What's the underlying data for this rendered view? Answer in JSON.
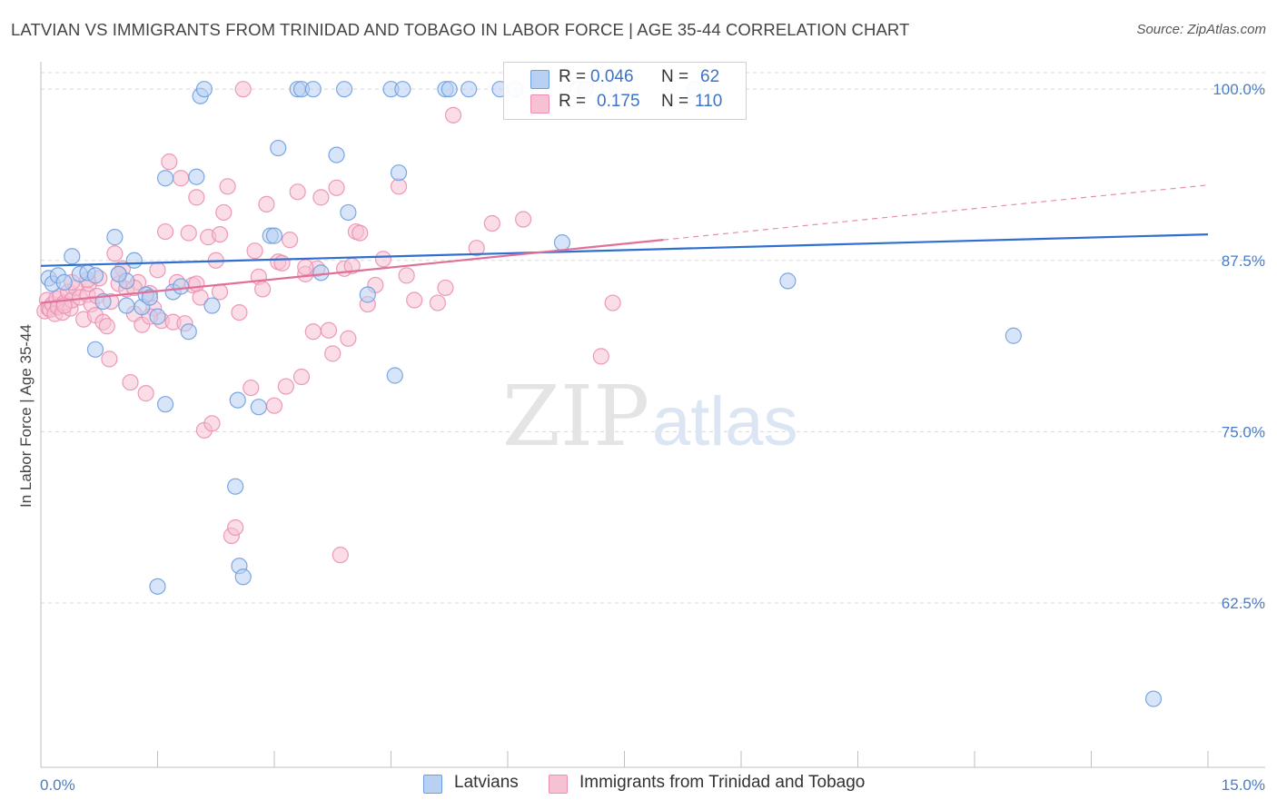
{
  "header": {
    "title": "LATVIAN VS IMMIGRANTS FROM TRINIDAD AND TOBAGO IN LABOR FORCE | AGE 35-44 CORRELATION CHART",
    "source": "Source: ZipAtlas.com"
  },
  "watermark": {
    "zip": "ZIP",
    "atlas": "atlas"
  },
  "legend_top": {
    "rows": [
      {
        "r_label": "R =",
        "r_value": "0.046",
        "n_label": "N =",
        "n_value": "62"
      },
      {
        "r_label": "R =",
        "r_value": "0.175",
        "n_label": "N =",
        "n_value": "110"
      }
    ]
  },
  "legend_bottom": {
    "items": [
      "Latvians",
      "Immigrants from Trinidad and Tobago"
    ]
  },
  "colors": {
    "blue_fill": "#b8d0f2",
    "blue_stroke": "#6d9ee0",
    "blue_line": "#2f6fd0",
    "pink_fill": "#f5c1d3",
    "pink_stroke": "#ec8fb0",
    "pink_line": "#e0709a",
    "tick_text": "#4a7cc7",
    "grid": "#d8d8d8"
  },
  "chart_data": {
    "type": "scatter",
    "title": "LATVIAN VS IMMIGRANTS FROM TRINIDAD AND TOBAGO IN LABOR FORCE | AGE 35-44 CORRELATION CHART",
    "xlabel": "",
    "ylabel": "In Labor Force | Age 35-44",
    "xlim": [
      0,
      15
    ],
    "ylim": [
      50.5,
      102
    ],
    "x_tick_labels": [
      "0.0%",
      "15.0%"
    ],
    "y_ticks": [
      62.5,
      75.0,
      87.5,
      100.0
    ],
    "y_tick_labels": [
      "62.5%",
      "75.0%",
      "87.5%",
      "100.0%"
    ],
    "grid": "horizontal dashed",
    "legend_placement": "top-center and bottom",
    "series": [
      {
        "name": "Latvians",
        "r": 0.046,
        "n": 62,
        "trend": {
          "x": [
            0,
            15
          ],
          "y": [
            87.1,
            89.4
          ]
        },
        "points": [
          [
            0.1,
            86.2
          ],
          [
            0.15,
            85.8
          ],
          [
            0.22,
            86.4
          ],
          [
            0.3,
            85.9
          ],
          [
            0.4,
            87.8
          ],
          [
            0.5,
            86.5
          ],
          [
            0.6,
            86.6
          ],
          [
            0.7,
            86.4
          ],
          [
            0.8,
            84.5
          ],
          [
            0.95,
            89.2
          ],
          [
            1.1,
            86.0
          ],
          [
            1.2,
            87.5
          ],
          [
            1.3,
            84.1
          ],
          [
            1.35,
            85.0
          ],
          [
            1.4,
            84.8
          ],
          [
            1.5,
            83.4
          ],
          [
            1.6,
            77.0
          ],
          [
            1.6,
            93.5
          ],
          [
            1.7,
            85.2
          ],
          [
            1.8,
            85.6
          ],
          [
            1.9,
            82.3
          ],
          [
            2.0,
            93.6
          ],
          [
            2.05,
            99.5
          ],
          [
            2.1,
            100.0
          ],
          [
            2.2,
            84.2
          ],
          [
            2.5,
            71.0
          ],
          [
            2.53,
            77.3
          ],
          [
            2.55,
            65.2
          ],
          [
            2.6,
            64.4
          ],
          [
            2.8,
            76.8
          ],
          [
            2.95,
            89.3
          ],
          [
            3.0,
            89.3
          ],
          [
            3.05,
            95.7
          ],
          [
            3.3,
            100.0
          ],
          [
            3.35,
            100.0
          ],
          [
            3.6,
            86.6
          ],
          [
            3.8,
            95.2
          ],
          [
            3.9,
            100.0
          ],
          [
            3.95,
            91.0
          ],
          [
            4.2,
            85.0
          ],
          [
            4.5,
            100.0
          ],
          [
            4.55,
            79.1
          ],
          [
            4.6,
            93.9
          ],
          [
            4.65,
            100.0
          ],
          [
            5.2,
            100.0
          ],
          [
            5.25,
            100.0
          ],
          [
            5.5,
            100.0
          ],
          [
            6.1,
            100.0
          ],
          [
            6.4,
            100.0
          ],
          [
            6.7,
            88.8
          ],
          [
            7.0,
            100.0
          ],
          [
            7.3,
            100.0
          ],
          [
            8.4,
            100.0
          ],
          [
            9.6,
            86.0
          ],
          [
            12.5,
            82.0
          ],
          [
            14.3,
            55.5
          ],
          [
            1.5,
            63.7
          ],
          [
            0.7,
            81.0
          ],
          [
            1.0,
            86.5
          ],
          [
            1.1,
            84.2
          ],
          [
            3.5,
            100.0
          ],
          [
            5.9,
            100.0
          ]
        ]
      },
      {
        "name": "Immigrants from Trinidad and Tobago",
        "r": 0.175,
        "n": 110,
        "trend": {
          "x": [
            0,
            8.0
          ],
          "y": [
            84.4,
            89.0
          ]
        },
        "trend_ext": {
          "x": [
            8.0,
            15
          ],
          "y": [
            89.0,
            93.0
          ]
        },
        "points": [
          [
            0.05,
            83.8
          ],
          [
            0.08,
            84.6
          ],
          [
            0.1,
            84.0
          ],
          [
            0.12,
            83.9
          ],
          [
            0.15,
            84.3
          ],
          [
            0.18,
            83.6
          ],
          [
            0.2,
            84.7
          ],
          [
            0.22,
            84.1
          ],
          [
            0.25,
            84.9
          ],
          [
            0.28,
            83.7
          ],
          [
            0.3,
            84.4
          ],
          [
            0.35,
            85.2
          ],
          [
            0.38,
            84.0
          ],
          [
            0.4,
            84.6
          ],
          [
            0.45,
            85.5
          ],
          [
            0.5,
            84.8
          ],
          [
            0.55,
            83.2
          ],
          [
            0.6,
            85.0
          ],
          [
            0.62,
            85.8
          ],
          [
            0.65,
            84.3
          ],
          [
            0.7,
            83.5
          ],
          [
            0.72,
            84.9
          ],
          [
            0.75,
            86.2
          ],
          [
            0.8,
            83.0
          ],
          [
            0.85,
            82.7
          ],
          [
            0.88,
            80.3
          ],
          [
            0.9,
            84.5
          ],
          [
            0.95,
            88.0
          ],
          [
            1.0,
            85.8
          ],
          [
            1.05,
            86.9
          ],
          [
            1.1,
            85.4
          ],
          [
            1.15,
            78.6
          ],
          [
            1.2,
            83.6
          ],
          [
            1.25,
            85.9
          ],
          [
            1.3,
            82.8
          ],
          [
            1.35,
            77.8
          ],
          [
            1.4,
            85.1
          ],
          [
            1.45,
            84.0
          ],
          [
            1.5,
            86.8
          ],
          [
            1.55,
            83.1
          ],
          [
            1.6,
            89.6
          ],
          [
            1.65,
            94.7
          ],
          [
            1.7,
            83.0
          ],
          [
            1.75,
            85.9
          ],
          [
            1.8,
            93.5
          ],
          [
            1.85,
            82.9
          ],
          [
            1.9,
            89.5
          ],
          [
            1.95,
            85.7
          ],
          [
            2.0,
            92.1
          ],
          [
            2.05,
            84.8
          ],
          [
            2.1,
            75.1
          ],
          [
            2.15,
            89.2
          ],
          [
            2.2,
            75.6
          ],
          [
            2.25,
            87.5
          ],
          [
            2.3,
            89.4
          ],
          [
            2.35,
            91.0
          ],
          [
            2.4,
            92.9
          ],
          [
            2.45,
            67.4
          ],
          [
            2.5,
            68.0
          ],
          [
            2.55,
            83.7
          ],
          [
            2.6,
            100.0
          ],
          [
            2.7,
            78.2
          ],
          [
            2.75,
            88.2
          ],
          [
            2.8,
            86.3
          ],
          [
            2.85,
            85.4
          ],
          [
            2.9,
            91.6
          ],
          [
            3.0,
            76.9
          ],
          [
            3.05,
            87.4
          ],
          [
            3.1,
            87.3
          ],
          [
            3.15,
            78.3
          ],
          [
            3.2,
            89.0
          ],
          [
            3.3,
            92.5
          ],
          [
            3.35,
            79.0
          ],
          [
            3.4,
            86.5
          ],
          [
            3.5,
            82.3
          ],
          [
            3.55,
            86.9
          ],
          [
            3.6,
            92.1
          ],
          [
            3.7,
            82.4
          ],
          [
            3.75,
            80.7
          ],
          [
            3.8,
            92.8
          ],
          [
            3.85,
            66.0
          ],
          [
            3.9,
            86.9
          ],
          [
            3.95,
            81.8
          ],
          [
            4.0,
            87.1
          ],
          [
            4.05,
            89.6
          ],
          [
            4.1,
            89.5
          ],
          [
            4.2,
            84.3
          ],
          [
            4.3,
            85.7
          ],
          [
            4.4,
            87.6
          ],
          [
            4.6,
            92.9
          ],
          [
            4.7,
            86.4
          ],
          [
            4.8,
            84.6
          ],
          [
            5.1,
            84.4
          ],
          [
            5.2,
            85.5
          ],
          [
            5.3,
            98.1
          ],
          [
            5.6,
            88.4
          ],
          [
            5.8,
            90.2
          ],
          [
            6.2,
            90.5
          ],
          [
            6.9,
            100.0
          ],
          [
            7.2,
            80.5
          ],
          [
            7.35,
            84.4
          ],
          [
            1.0,
            86.5
          ],
          [
            0.4,
            85.9
          ],
          [
            2.0,
            85.8
          ],
          [
            1.2,
            85.5
          ],
          [
            0.3,
            84.2
          ],
          [
            3.4,
            87.0
          ],
          [
            0.6,
            86.1
          ],
          [
            1.4,
            83.4
          ],
          [
            2.3,
            85.2
          ]
        ]
      }
    ]
  }
}
